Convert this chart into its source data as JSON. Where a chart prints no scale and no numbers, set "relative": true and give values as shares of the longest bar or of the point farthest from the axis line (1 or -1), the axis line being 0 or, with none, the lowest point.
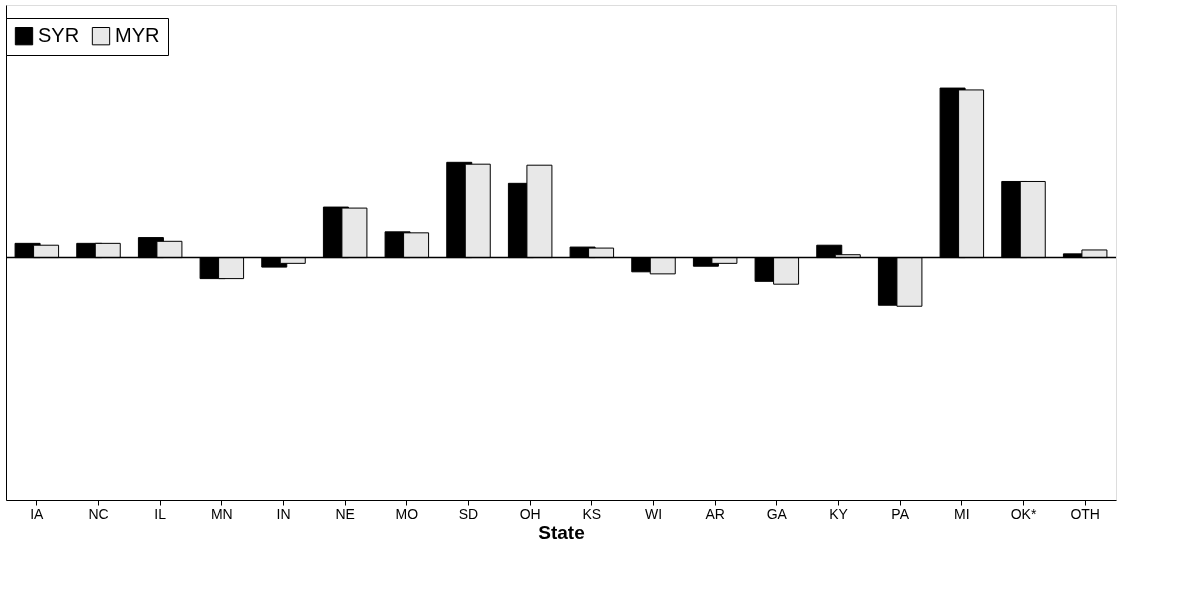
{
  "chart_data": {
    "type": "bar",
    "relative": true,
    "xlabel": "State",
    "legend": "top",
    "grid": false,
    "categories": [
      "IA",
      "NC",
      "IL",
      "MN",
      "IN",
      "NE",
      "MO",
      "SD",
      "OH",
      "KS",
      "WI",
      "AR",
      "GA",
      "KY",
      "PA",
      "MI",
      "OK*",
      "OTH"
    ],
    "series": [
      {
        "name": "SYR",
        "color": "#000000",
        "values": [
          0.084,
          0.084,
          0.118,
          -0.124,
          -0.056,
          0.298,
          0.152,
          0.562,
          0.438,
          0.062,
          -0.084,
          -0.051,
          -0.14,
          0.073,
          -0.281,
          1,
          0.449,
          0.022
        ]
      },
      {
        "name": "MYR",
        "color": "#e8e8e8",
        "values": [
          0.073,
          0.084,
          0.096,
          -0.124,
          -0.034,
          0.292,
          0.146,
          0.551,
          0.545,
          0.056,
          -0.096,
          -0.034,
          -0.157,
          0.017,
          -0.287,
          0.989,
          0.449,
          0.045
        ]
      }
    ]
  }
}
